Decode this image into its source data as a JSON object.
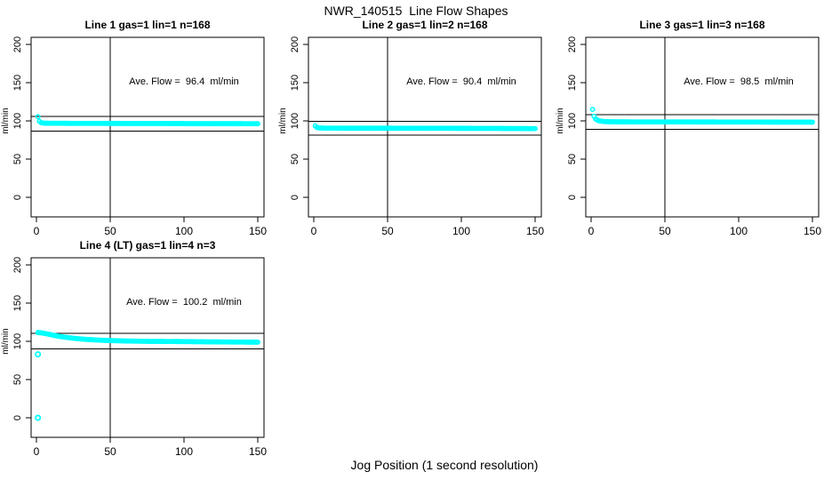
{
  "chart_data": {
    "type": "scatter",
    "title": "NWR_140515  Line Flow Shapes",
    "xlabel": "Jog Position (1 second resolution)",
    "ylabel": "ml/min",
    "point_color": "#00ffff",
    "axis_color": "#000000",
    "background": "#ffffff",
    "grid": false,
    "legend": "none",
    "x_ticks": [
      0,
      50,
      100,
      150
    ],
    "y_ticks": [
      0,
      50,
      100,
      150,
      200
    ],
    "xlim": [
      -4,
      154
    ],
    "ylim": [
      -26,
      209
    ],
    "vline_x": 50,
    "panels": [
      {
        "title": "Line 1 gas=1 lin=1 n=168",
        "annotation": "Ave. Flow =  96.4  ml/min",
        "ave_flow_ml_min": 96.4,
        "gas": 1,
        "lin": 1,
        "n": 168,
        "hlines": [
          106.0,
          86.8
        ],
        "band": [
          [
            1,
            105.5
          ],
          [
            2,
            99.5
          ],
          [
            3,
            97.8
          ],
          [
            5,
            97.0
          ],
          [
            10,
            96.9
          ],
          [
            20,
            96.8
          ],
          [
            40,
            96.7
          ],
          [
            70,
            96.6
          ],
          [
            100,
            96.5
          ],
          [
            130,
            96.4
          ],
          [
            150,
            96.3
          ]
        ],
        "outliers": []
      },
      {
        "title": "Line 2 gas=1 lin=2 n=168",
        "annotation": "Ave. Flow =  90.4  ml/min",
        "ave_flow_ml_min": 90.4,
        "gas": 1,
        "lin": 2,
        "n": 168,
        "hlines": [
          99.4,
          81.4
        ],
        "band": [
          [
            1,
            93.5
          ],
          [
            2,
            91.5
          ],
          [
            4,
            90.8
          ],
          [
            8,
            90.5
          ],
          [
            20,
            90.4
          ],
          [
            50,
            90.4
          ],
          [
            90,
            90.3
          ],
          [
            120,
            90.2
          ],
          [
            150,
            89.9
          ]
        ],
        "outliers": []
      },
      {
        "title": "Line 3 gas=1 lin=3 n=168",
        "annotation": "Ave. Flow =  98.5  ml/min",
        "ave_flow_ml_min": 98.5,
        "gas": 1,
        "lin": 3,
        "n": 168,
        "hlines": [
          108.4,
          88.7
        ],
        "band": [
          [
            1,
            115
          ],
          [
            2,
            106
          ],
          [
            3,
            102.5
          ],
          [
            5,
            100.3
          ],
          [
            8,
            99.3
          ],
          [
            12,
            98.9
          ],
          [
            20,
            98.7
          ],
          [
            50,
            98.6
          ],
          [
            100,
            98.5
          ],
          [
            150,
            98.3
          ]
        ],
        "outliers": []
      },
      {
        "title": "Line 4 (LT) gas=1 lin=4 n=3",
        "annotation": "Ave. Flow =  100.2  ml/min",
        "ave_flow_ml_min": 100.2,
        "gas": 1,
        "lin": 4,
        "n": 3,
        "hlines": [
          110.2,
          90.2
        ],
        "band": [
          [
            1,
            111.5
          ],
          [
            3,
            111.2
          ],
          [
            6,
            110.2
          ],
          [
            10,
            108.6
          ],
          [
            14,
            107.0
          ],
          [
            19,
            105.5
          ],
          [
            25,
            104.0
          ],
          [
            32,
            102.8
          ],
          [
            40,
            101.8
          ],
          [
            50,
            101.0
          ],
          [
            62,
            100.4
          ],
          [
            75,
            100.0
          ],
          [
            90,
            99.8
          ],
          [
            105,
            99.6
          ],
          [
            120,
            99.3
          ],
          [
            135,
            99.1
          ],
          [
            150,
            98.9
          ]
        ],
        "outliers": [
          [
            1,
            83
          ],
          [
            1,
            0
          ]
        ]
      }
    ]
  }
}
